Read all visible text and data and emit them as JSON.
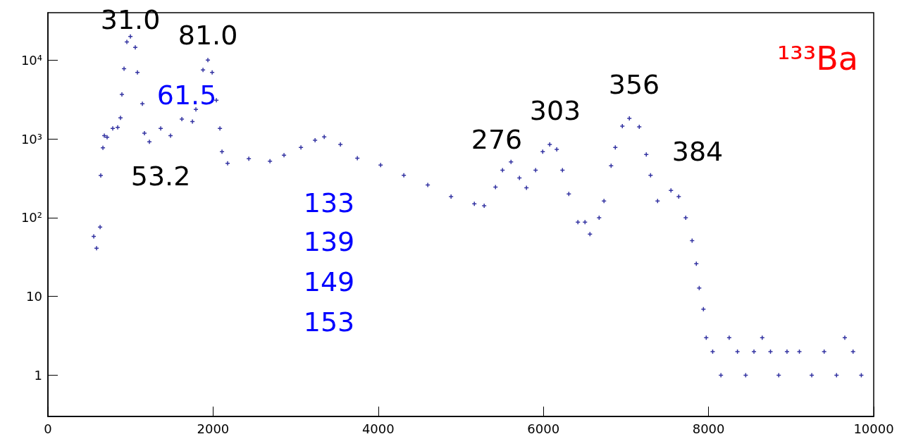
{
  "chart_data": {
    "type": "scatter",
    "title": "¹³³Ba",
    "marker": "cross",
    "grid": false,
    "log": "y",
    "xlim": [
      0,
      10000
    ],
    "xticks": [
      0,
      2000,
      4000,
      6000,
      8000,
      10000
    ],
    "ylim": [
      0.3,
      40000
    ],
    "yticks": [
      1,
      10,
      {
        "value": 100,
        "label": "10²"
      },
      {
        "value": 1000,
        "label": "10³"
      },
      {
        "value": 10000,
        "label": "10⁴"
      }
    ],
    "series": [
      {
        "color": "#00008b",
        "x": [
          555,
          589,
          632,
          640,
          666,
          683,
          717,
          785,
          845,
          879,
          896,
          922,
          956,
          999,
          1058,
          1084,
          1144,
          1169,
          1229,
          1366,
          1485,
          1622,
          1750,
          1792,
          1878,
          1937,
          1989,
          2040,
          2083,
          2108,
          2176,
          2433,
          2689,
          2859,
          3064,
          3235,
          3346,
          3542,
          3747,
          4029,
          4310,
          4600,
          4882,
          5164,
          5283,
          5420,
          5505,
          5608,
          5710,
          5795,
          5906,
          5992,
          6077,
          6162,
          6231,
          6308,
          6418,
          6504,
          6564,
          6675,
          6734,
          6820,
          6871,
          6956,
          7041,
          7161,
          7246,
          7298,
          7383,
          7545,
          7639,
          7724,
          7801,
          7852,
          7887,
          7938,
          7972,
          8050,
          8150,
          8250,
          8350,
          8450,
          8550,
          8650,
          8750,
          8850,
          8950,
          9100,
          9250,
          9400,
          9550,
          9650,
          9750,
          9850
        ],
        "values": [
          58,
          41,
          76,
          344,
          770,
          1100,
          1050,
          1360,
          1400,
          1850,
          3660,
          7800,
          17000,
          20000,
          14500,
          7000,
          2800,
          1180,
          920,
          1360,
          1100,
          1780,
          1660,
          2370,
          7500,
          10000,
          7000,
          3100,
          1360,
          690,
          490,
          560,
          520,
          620,
          780,
          960,
          1060,
          850,
          570,
          465,
          345,
          260,
          185,
          150,
          142,
          245,
          400,
          510,
          320,
          240,
          400,
          690,
          850,
          735,
          400,
          200,
          88,
          88,
          62,
          100,
          163,
          457,
          780,
          1450,
          1820,
          1420,
          635,
          345,
          163,
          222,
          185,
          100,
          51,
          26,
          12.8,
          6.9,
          3,
          2,
          1,
          3,
          2,
          1,
          2,
          3,
          2,
          1,
          2,
          2,
          1,
          2,
          1,
          3,
          2,
          1
        ]
      }
    ],
    "annotations": [
      "31.0",
      "81.0",
      "61.5",
      "53.2",
      "133",
      "139",
      "149",
      "153",
      "276",
      "303",
      "356",
      "384"
    ]
  }
}
